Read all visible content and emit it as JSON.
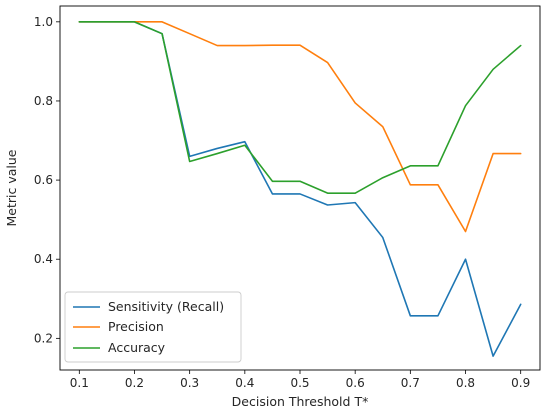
{
  "chart_data": {
    "type": "line",
    "title": "",
    "xlabel": "Decision Threshold T*",
    "ylabel": "Metric value",
    "xlim": [
      0.065,
      0.935
    ],
    "ylim": [
      0.12,
      1.04
    ],
    "xticks": [
      0.1,
      0.2,
      0.3,
      0.4,
      0.5,
      0.6,
      0.7,
      0.8,
      0.9
    ],
    "xtick_labels": [
      "0.1",
      "0.2",
      "0.3",
      "0.4",
      "0.5",
      "0.6",
      "0.7",
      "0.8",
      "0.9"
    ],
    "yticks": [
      0.2,
      0.4,
      0.6,
      0.8,
      1.0
    ],
    "ytick_labels": [
      "0.2",
      "0.4",
      "0.6",
      "0.8",
      "1.0"
    ],
    "grid": false,
    "legend_position": "lower-left",
    "x": [
      0.1,
      0.15,
      0.2,
      0.25,
      0.3,
      0.35,
      0.4,
      0.45,
      0.5,
      0.55,
      0.6,
      0.65,
      0.7,
      0.75,
      0.8,
      0.85,
      0.9
    ],
    "series": [
      {
        "name": "Sensitivity (Recall)",
        "color": "#1f77b4",
        "values": [
          1.0,
          1.0,
          1.0,
          0.97,
          0.66,
          0.68,
          0.697,
          0.565,
          0.565,
          0.537,
          0.543,
          0.455,
          0.257,
          0.257,
          0.4,
          0.155,
          0.286
        ]
      },
      {
        "name": "Precision",
        "color": "#ff7f0e",
        "values": [
          1.0,
          1.0,
          1.0,
          1.0,
          0.97,
          0.94,
          0.94,
          0.941,
          0.941,
          0.897,
          0.795,
          0.735,
          0.588,
          0.588,
          0.47,
          0.667,
          0.667
        ]
      },
      {
        "name": "Accuracy",
        "color": "#2ca02c",
        "values": [
          1.0,
          1.0,
          1.0,
          0.97,
          0.647,
          0.667,
          0.688,
          0.597,
          0.597,
          0.567,
          0.567,
          0.606,
          0.636,
          0.636,
          0.788,
          0.88,
          0.94
        ]
      }
    ]
  }
}
